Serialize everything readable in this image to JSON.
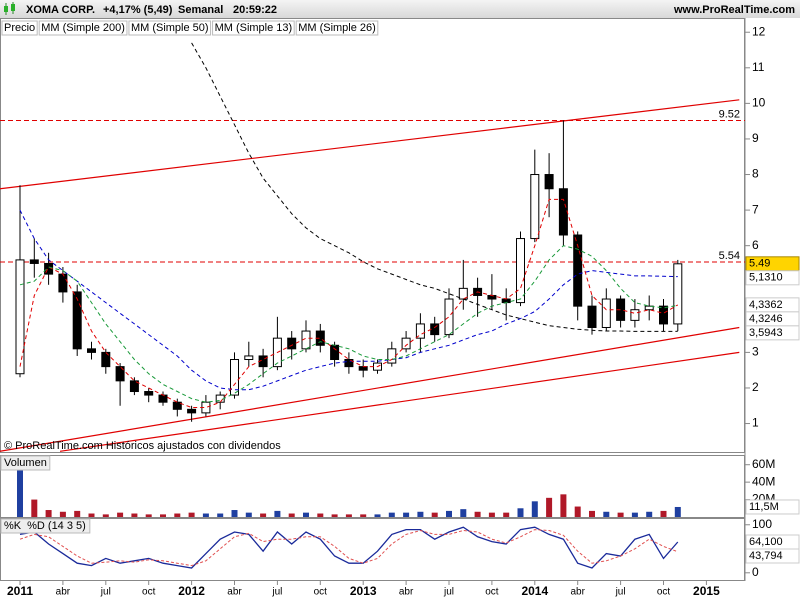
{
  "header": {
    "symbol": "XOMA CORP.",
    "change": "+4,17% (5,49)",
    "period": "Semanal",
    "time": "20:59:22",
    "site": "www.ProRealTime.com"
  },
  "chart_data": [
    {
      "type": "candlestick",
      "legend_label": "Precio",
      "footnote": "© ProRealTime.com  Históricos ajustados con dividendos",
      "categories": [
        "2011",
        null,
        null,
        "abr",
        null,
        null,
        "jul",
        null,
        null,
        "oct",
        null,
        null,
        "2012",
        null,
        null,
        "abr",
        null,
        null,
        "jul",
        null,
        null,
        "oct",
        null,
        null,
        "2013",
        null,
        null,
        "abr",
        null,
        null,
        "jul",
        null,
        null,
        "oct",
        null,
        null,
        "2014",
        null,
        null,
        "abr",
        null,
        null,
        "jul",
        null,
        null,
        "oct",
        null,
        null,
        "2015"
      ],
      "open": [
        2.4,
        5.6,
        5.5,
        5.2,
        4.7,
        3.1,
        3.0,
        2.6,
        2.2,
        1.9,
        1.8,
        1.6,
        1.4,
        1.3,
        1.6,
        1.8,
        2.8,
        2.9,
        2.6,
        3.4,
        3.1,
        3.6,
        3.2,
        2.8,
        2.6,
        2.5,
        2.7,
        3.1,
        3.4,
        3.8,
        3.5,
        4.5,
        4.8,
        4.6,
        4.5,
        4.4,
        6.2,
        8.0,
        7.6,
        6.3,
        4.3,
        3.7,
        4.5,
        3.9,
        4.2,
        4.3,
        3.8,
        null,
        null
      ],
      "high": [
        7.7,
        6.2,
        5.8,
        5.4,
        4.9,
        3.3,
        3.1,
        2.7,
        2.3,
        2.0,
        1.9,
        1.7,
        1.5,
        1.8,
        1.9,
        3.0,
        3.3,
        3.1,
        4.0,
        3.6,
        3.9,
        3.8,
        3.3,
        3.0,
        2.8,
        2.8,
        3.3,
        3.6,
        4.1,
        4.0,
        4.8,
        5.6,
        5.1,
        5.2,
        4.8,
        6.4,
        8.7,
        8.6,
        9.52,
        6.4,
        4.6,
        4.8,
        4.6,
        4.5,
        4.6,
        4.5,
        5.6,
        null,
        null
      ],
      "low": [
        2.3,
        5.1,
        4.9,
        4.4,
        2.9,
        2.8,
        2.4,
        1.5,
        1.8,
        1.6,
        1.5,
        1.2,
        1.05,
        1.2,
        1.4,
        1.7,
        2.6,
        2.3,
        2.5,
        2.8,
        3.0,
        3.0,
        2.6,
        2.4,
        2.3,
        2.4,
        2.6,
        3.0,
        3.0,
        3.3,
        3.4,
        4.2,
        4.0,
        4.2,
        3.9,
        4.3,
        6.1,
        6.8,
        6.0,
        3.9,
        3.5,
        3.6,
        3.7,
        3.7,
        3.9,
        3.6,
        3.6,
        null,
        null
      ],
      "close": [
        5.6,
        5.5,
        5.2,
        4.7,
        3.1,
        3.0,
        2.6,
        2.2,
        1.9,
        1.8,
        1.6,
        1.4,
        1.3,
        1.6,
        1.8,
        2.8,
        2.9,
        2.6,
        3.4,
        3.1,
        3.6,
        3.2,
        2.8,
        2.6,
        2.5,
        2.7,
        3.1,
        3.4,
        3.8,
        3.5,
        4.5,
        4.8,
        4.6,
        4.5,
        4.4,
        6.2,
        8.0,
        7.6,
        6.3,
        4.3,
        3.7,
        4.5,
        3.9,
        4.2,
        4.3,
        3.8,
        5.49,
        null,
        null
      ],
      "series": [
        {
          "name": "MM (Simple 200)",
          "color": "#000000",
          "values": [
            null,
            null,
            null,
            null,
            null,
            null,
            null,
            null,
            null,
            null,
            null,
            null,
            11.7,
            11.0,
            10.2,
            9.4,
            8.6,
            7.9,
            7.4,
            6.9,
            6.5,
            6.2,
            6.0,
            5.8,
            5.55,
            5.35,
            5.2,
            5.05,
            4.9,
            4.8,
            4.65,
            4.5,
            4.35,
            4.2,
            4.05,
            3.95,
            3.85,
            3.75,
            3.7,
            3.65,
            3.62,
            3.6,
            3.6,
            3.59,
            3.59,
            3.59,
            3.5943,
            null,
            null
          ]
        },
        {
          "name": "MM (Simple 50)",
          "color": "#0000cc",
          "values": [
            7.0,
            6.2,
            5.6,
            5.3,
            5.0,
            4.7,
            4.4,
            4.1,
            3.8,
            3.5,
            3.2,
            2.9,
            2.5,
            2.2,
            2.0,
            1.95,
            1.95,
            2.05,
            2.2,
            2.35,
            2.5,
            2.6,
            2.7,
            2.75,
            2.75,
            2.75,
            2.8,
            2.85,
            3.0,
            3.1,
            3.2,
            3.35,
            3.5,
            3.6,
            3.8,
            3.95,
            4.15,
            4.5,
            4.9,
            5.2,
            5.3,
            5.25,
            5.2,
            5.15,
            5.15,
            5.14,
            5.131,
            null,
            null
          ]
        },
        {
          "name": "MM (Simple 13)",
          "color": "#e00000",
          "values": [
            2.6,
            4.6,
            5.4,
            5.2,
            4.5,
            3.6,
            3.0,
            2.6,
            2.2,
            2.0,
            1.8,
            1.6,
            1.45,
            1.45,
            1.6,
            2.1,
            2.6,
            2.8,
            3.0,
            3.2,
            3.4,
            3.4,
            3.1,
            2.8,
            2.6,
            2.6,
            2.8,
            3.2,
            3.5,
            3.7,
            4.0,
            4.5,
            4.7,
            4.6,
            4.5,
            4.8,
            6.0,
            7.3,
            7.3,
            6.0,
            4.6,
            4.2,
            4.2,
            4.1,
            4.2,
            4.1,
            4.3362,
            null,
            null
          ]
        },
        {
          "name": "MM (Simple 26)",
          "color": "#1a9a3a",
          "values": [
            4.9,
            5.0,
            5.4,
            5.3,
            5.0,
            4.4,
            3.8,
            3.3,
            2.8,
            2.4,
            2.1,
            1.9,
            1.7,
            1.6,
            1.65,
            1.85,
            2.1,
            2.4,
            2.7,
            2.9,
            3.1,
            3.3,
            3.2,
            3.1,
            2.9,
            2.8,
            2.8,
            2.9,
            3.1,
            3.3,
            3.5,
            3.8,
            4.1,
            4.3,
            4.4,
            4.5,
            5.0,
            5.6,
            6.0,
            5.9,
            5.7,
            5.3,
            4.8,
            4.4,
            4.3,
            4.25,
            4.3246,
            null,
            null
          ]
        }
      ],
      "last_value_labels": [
        {
          "value": 5.49,
          "label": "5.49",
          "color": "#ffd400",
          "highlight": true
        },
        {
          "value": 5.131,
          "label": "5,1310",
          "color": "#0000cc"
        },
        {
          "value": 4.3362,
          "label": "4,3362",
          "color": "#e00000"
        },
        {
          "value": 4.3246,
          "label": "4,3246",
          "color": "#1a9a3a"
        },
        {
          "value": 3.5943,
          "label": "3,5943",
          "color": "#000000"
        }
      ],
      "hlines": [
        {
          "value": 9.52,
          "label": "9.52"
        },
        {
          "value": 5.54,
          "label": "5.54"
        }
      ],
      "channels": [
        {
          "x": [
            -1.4,
            50.3
          ],
          "y": [
            7.6,
            10.1
          ]
        },
        {
          "x": [
            -1.4,
            50.3
          ],
          "y": [
            0.22,
            3.7
          ]
        },
        {
          "x": [
            2.8,
            50.3
          ],
          "y": [
            0.22,
            3.0
          ]
        }
      ],
      "channel_color": "#e00000",
      "ylim": [
        0.2,
        12.4
      ],
      "yticks": [
        1,
        2,
        3,
        4,
        5,
        6,
        7,
        8,
        9,
        10,
        11,
        12
      ]
    },
    {
      "type": "bar",
      "title": "Volumen",
      "up_color": "#1f3fa0",
      "down_color": "#b01828",
      "values": [
        65000000,
        20000000,
        8000000,
        6000000,
        7000000,
        4000000,
        3000000,
        5000000,
        4000000,
        3000000,
        3000000,
        4000000,
        5000000,
        4000000,
        4000000,
        8000000,
        5000000,
        4000000,
        7000000,
        4000000,
        5000000,
        4000000,
        3000000,
        3000000,
        3000000,
        3000000,
        5000000,
        5000000,
        6000000,
        5000000,
        7000000,
        9000000,
        6000000,
        5000000,
        5000000,
        10000000,
        18000000,
        22000000,
        26000000,
        12000000,
        7000000,
        6000000,
        5000000,
        5000000,
        6000000,
        7000000,
        11500000,
        null,
        null
      ],
      "last_value_labels": [
        {
          "value": 11500000,
          "label": "11,5M",
          "color": "#000000"
        }
      ],
      "ylim": [
        0,
        70000000
      ],
      "yticks": [
        {
          "value": 20000000,
          "label": "20M"
        },
        {
          "value": 40000000,
          "label": "40M"
        },
        {
          "value": 60000000,
          "label": "60M"
        }
      ]
    },
    {
      "type": "line",
      "series": [
        {
          "name": "%K",
          "color": "#1a2a9a",
          "values": [
            80,
            85,
            60,
            40,
            20,
            15,
            30,
            20,
            25,
            30,
            20,
            15,
            10,
            40,
            70,
            85,
            80,
            45,
            85,
            60,
            85,
            70,
            35,
            20,
            20,
            45,
            80,
            90,
            90,
            70,
            85,
            95,
            75,
            65,
            60,
            90,
            95,
            80,
            70,
            20,
            10,
            40,
            35,
            70,
            80,
            30,
            64.1,
            null,
            null
          ]
        },
        {
          "name": "%D (14 3 5)",
          "color": "#e05050",
          "values": [
            70,
            80,
            75,
            55,
            35,
            20,
            22,
            25,
            22,
            27,
            25,
            20,
            15,
            25,
            50,
            75,
            82,
            65,
            70,
            70,
            75,
            75,
            55,
            30,
            20,
            30,
            60,
            80,
            88,
            80,
            80,
            88,
            85,
            70,
            62,
            75,
            90,
            88,
            78,
            45,
            20,
            25,
            35,
            50,
            70,
            55,
            43.794,
            null,
            null
          ]
        }
      ],
      "last_value_labels": [
        {
          "value": 64.1,
          "label": "64,100",
          "color": "#1a2a9a"
        },
        {
          "value": 43.794,
          "label": "43,794",
          "color": "#e05050"
        }
      ],
      "ylim": [
        -15,
        112
      ],
      "yticks": [
        0,
        50,
        100
      ]
    }
  ]
}
